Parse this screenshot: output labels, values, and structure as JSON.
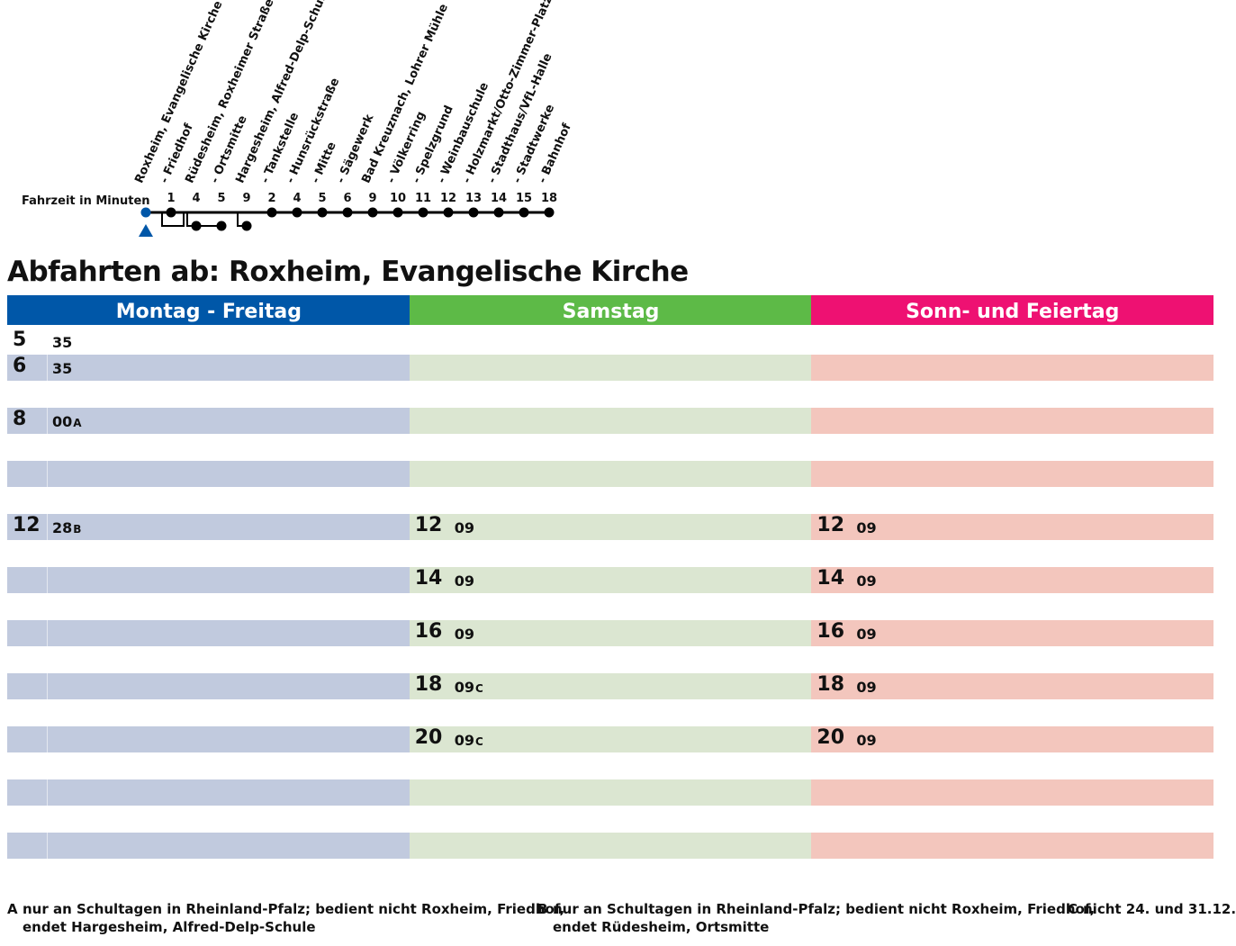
{
  "route": {
    "fahrzeit_label": "Fahrzeit in Minuten",
    "stops": [
      {
        "name": "Roxheim, Evangelische Kirche",
        "time": ""
      },
      {
        "name": "- Friedhof",
        "time": "1"
      },
      {
        "name": "Rüdesheim, Roxheimer Straße",
        "time": "4"
      },
      {
        "name": "- Ortsmitte",
        "time": "5"
      },
      {
        "name": "Hargesheim, Alfred-Delp-Schule",
        "time": "9"
      },
      {
        "name": "- Tankstelle",
        "time": "2"
      },
      {
        "name": "- Hunsrückstraße",
        "time": "4"
      },
      {
        "name": "- Mitte",
        "time": "5"
      },
      {
        "name": "- Sägewerk",
        "time": "6"
      },
      {
        "name": "Bad Kreuznach, Lohrer Mühle",
        "time": "9"
      },
      {
        "name": "- Völkerring",
        "time": "10"
      },
      {
        "name": "- Spelzgrund",
        "time": "11"
      },
      {
        "name": "- Weinbauschule",
        "time": "12"
      },
      {
        "name": "- Holzmarkt/Otto-Zimmer-Platz",
        "time": "13"
      },
      {
        "name": "- Stadthaus/VfL-Halle",
        "time": "14"
      },
      {
        "name": "- Stadtwerke",
        "time": "15"
      },
      {
        "name": "- Bahnhof",
        "time": "18"
      }
    ],
    "colors": {
      "origin": "#0057a8",
      "line": "#000000"
    }
  },
  "title": "Abfahrten ab: Roxheim, Evangelische Kirche",
  "columns": [
    {
      "label": "Montag - Freitag",
      "header_color": "#0057a8",
      "band_color": "#c1cade"
    },
    {
      "label": "Samstag",
      "header_color": "#5dba47",
      "band_color": "#dbe6d1"
    },
    {
      "label": "Sonn- und Feiertag",
      "header_color": "#ee1172",
      "band_color": "#f3c6bd"
    }
  ],
  "rows": [
    [
      {
        "hour": "5",
        "mins": "35",
        "note": ""
      },
      null,
      null
    ],
    [
      {
        "hour": "6",
        "mins": "35",
        "note": ""
      },
      null,
      null
    ],
    [
      null,
      null,
      null
    ],
    [
      {
        "hour": "8",
        "mins": "00",
        "note": "A"
      },
      null,
      null
    ],
    [
      null,
      null,
      null
    ],
    [
      null,
      null,
      null
    ],
    [
      null,
      null,
      null
    ],
    [
      {
        "hour": "12",
        "mins": "28",
        "note": "B"
      },
      {
        "hour": "12",
        "mins": "09",
        "note": ""
      },
      {
        "hour": "12",
        "mins": "09",
        "note": ""
      }
    ],
    [
      null,
      null,
      null
    ],
    [
      null,
      {
        "hour": "14",
        "mins": "09",
        "note": ""
      },
      {
        "hour": "14",
        "mins": "09",
        "note": ""
      }
    ],
    [
      null,
      null,
      null
    ],
    [
      null,
      {
        "hour": "16",
        "mins": "09",
        "note": ""
      },
      {
        "hour": "16",
        "mins": "09",
        "note": ""
      }
    ],
    [
      null,
      null,
      null
    ],
    [
      null,
      {
        "hour": "18",
        "mins": "09",
        "note": "C"
      },
      {
        "hour": "18",
        "mins": "09",
        "note": ""
      }
    ],
    [
      null,
      null,
      null
    ],
    [
      null,
      {
        "hour": "20",
        "mins": "09",
        "note": "C"
      },
      {
        "hour": "20",
        "mins": "09",
        "note": ""
      }
    ],
    [
      null,
      null,
      null
    ],
    [
      null,
      null,
      null
    ],
    [
      null,
      null,
      null
    ],
    [
      null,
      null,
      null
    ]
  ],
  "footnotes": [
    {
      "key": "A",
      "lines": [
        "nur an Schultagen in Rheinland-Pfalz; bedient nicht  Roxheim, Friedhof,",
        "endet Hargesheim, Alfred-Delp-Schule"
      ]
    },
    {
      "key": "B",
      "lines": [
        "nur an Schultagen in Rheinland-Pfalz; bedient nicht  Roxheim, Friedhof,",
        "endet Rüdesheim, Ortsmitte"
      ]
    },
    {
      "key": "C",
      "lines": [
        "nicht 24. und 31.12."
      ]
    }
  ]
}
